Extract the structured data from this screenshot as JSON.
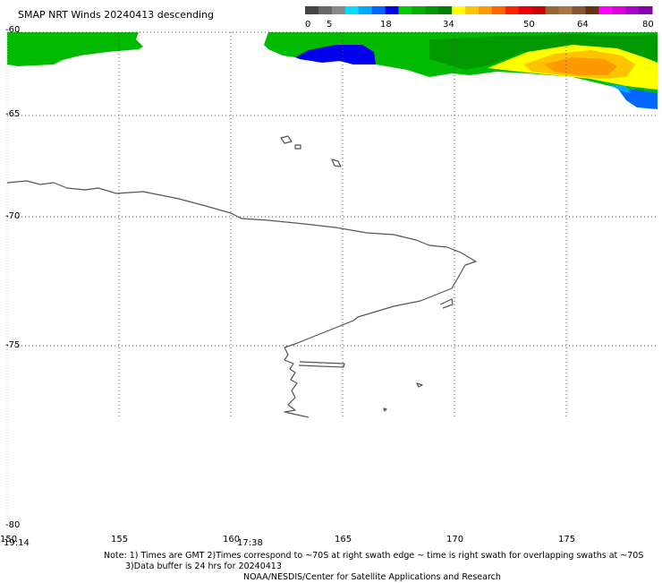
{
  "title": "SMAP NRT Winds  20240413 descending",
  "colorbar": {
    "tick_labels": [
      "0",
      "5",
      "18",
      "34",
      "50",
      "64",
      "80"
    ],
    "colors": [
      "#444444",
      "#666666",
      "#888888",
      "#00ddff",
      "#00aaff",
      "#0066ff",
      "#0000ee",
      "#00cc00",
      "#00b000",
      "#009800",
      "#007f00",
      "#ffff00",
      "#ffc400",
      "#ff9900",
      "#ff6600",
      "#ff2200",
      "#ee0000",
      "#cc0000",
      "#996633",
      "#aa7744",
      "#885533",
      "#663311",
      "#ff00ff",
      "#dd00dd",
      "#aa00cc",
      "#8800aa"
    ]
  },
  "map": {
    "lat_labels": [
      "-60",
      "-65",
      "-70",
      "-75",
      "-80"
    ],
    "lon_labels": [
      "150",
      "155",
      "160",
      "165",
      "170",
      "175"
    ]
  },
  "time_labels": [
    "19:14",
    "17:38"
  ],
  "notes": {
    "line1": "Note: 1) Times are GMT 2)Times correspond to ~70S at right swath edge ~ time is right swath for overlapping swaths at ~70S",
    "line2": "3)Data buffer is 24 hrs for 20240413",
    "line3": "NOAA/NESDIS/Center for Satellite Applications and Research"
  }
}
